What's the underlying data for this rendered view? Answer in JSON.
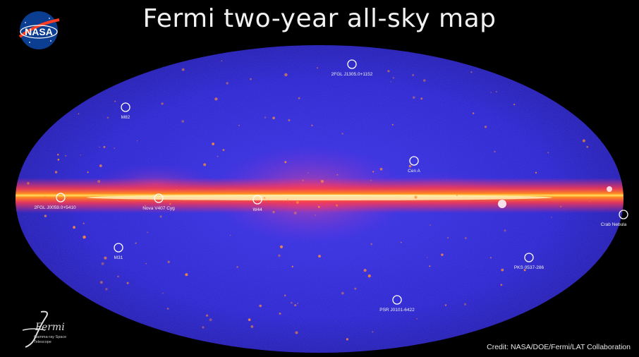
{
  "title": "Fermi two-year all-sky map",
  "credit": "Credit: NASA/DOE/Fermi/LAT Collaboration",
  "logos": {
    "nasa": "NASA",
    "fermi_name": "Fermi",
    "fermi_subtitle": "Gamma-ray Space Telescope"
  },
  "sources": [
    {
      "label": "2FGL J1305.0+1152"
    },
    {
      "label": "M82"
    },
    {
      "label": "Cen A"
    },
    {
      "label": "2FGL J0059.0+5410"
    },
    {
      "label": "Nova V407 Cyg"
    },
    {
      "label": "W44"
    },
    {
      "label": "Crab Nebula"
    },
    {
      "label": "M31"
    },
    {
      "label": "PKS 0537-286"
    },
    {
      "label": "PSR J0101-6422"
    }
  ],
  "colors": {
    "background": "#000000",
    "sky": "#2a2ad8",
    "plane": "#ffcc33"
  }
}
